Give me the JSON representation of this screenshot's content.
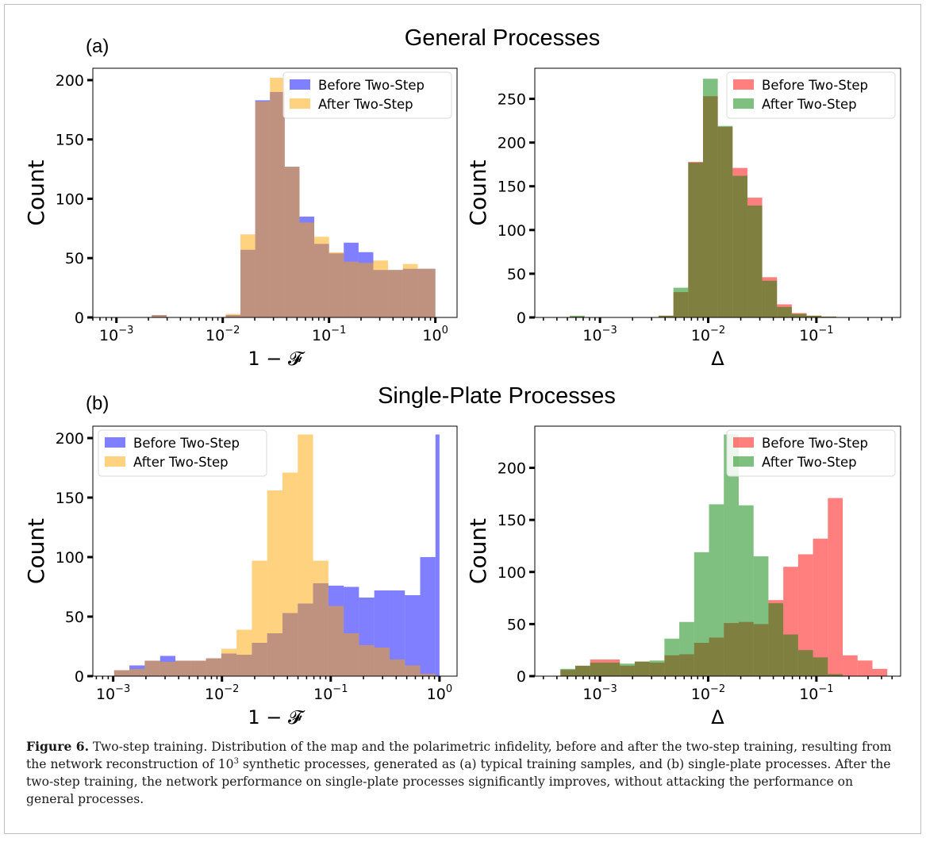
{
  "row_titles": [
    {
      "panel_label": "(a)",
      "title": "General Processes"
    },
    {
      "panel_label": "(b)",
      "title": "Single-Plate Processes"
    }
  ],
  "caption": {
    "label": "Figure 6.",
    "text_1": " Two-step training. Distribution of the map and the polarimetric infidelity, before and after the two-step training, resulting from the network reconstruction of 10",
    "sup": "3",
    "text_2": " synthetic processes, generated as (a) typical training samples, and (b) single-plate processes. After the two-step training, the network performance on single-plate processes significantly improves, without attacking the performance on general processes."
  },
  "colors": {
    "blue": "#0000ff",
    "orange": "#ffa500",
    "red": "#ff0000",
    "green": "#008000",
    "alpha": 0.5
  },
  "chart_data": [
    {
      "type": "bar",
      "xscale": "log",
      "xlabel": "1 − 𝓕",
      "ylabel": "Count",
      "xlim": [
        0.0006,
        1.6
      ],
      "ylim": [
        0,
        210
      ],
      "xticks": [
        [
          "10",
          "-3"
        ],
        [
          "10",
          "-2"
        ],
        [
          "10",
          "-1"
        ],
        [
          "10",
          "0"
        ]
      ],
      "yticks": [
        0,
        50,
        100,
        150,
        200
      ],
      "legend_position": "top-right",
      "bin_edges": [
        0.00215,
        0.00297,
        0.00408,
        0.00562,
        0.00774,
        0.01067,
        0.01468,
        0.02021,
        0.02782,
        0.03831,
        0.05274,
        0.07261,
        0.09998,
        0.13761,
        0.18951,
        0.26098,
        0.35937,
        0.49484,
        0.68144,
        0.93841,
        1.0
      ],
      "series": [
        {
          "name": "Before Two-Step",
          "color": "blue",
          "values": [
            2,
            0,
            0,
            0,
            0,
            2,
            57,
            183,
            190,
            127,
            85,
            62,
            54,
            63,
            55,
            40,
            40,
            41,
            41,
            41
          ]
        },
        {
          "name": "After Two-Step",
          "color": "orange",
          "values": [
            2,
            0,
            0,
            0,
            0,
            3,
            70,
            182,
            202,
            127,
            80,
            68,
            55,
            47,
            46,
            48,
            40,
            45,
            41,
            41
          ]
        }
      ]
    },
    {
      "type": "bar",
      "xscale": "log",
      "xlabel": "Δ",
      "ylabel": "Count",
      "xlim": [
        0.00025,
        0.6
      ],
      "ylim": [
        0,
        285
      ],
      "xticks": [
        [
          "10",
          "-3"
        ],
        [
          "10",
          "-2"
        ],
        [
          "10",
          "-1"
        ]
      ],
      "yticks": [
        0,
        50,
        100,
        150,
        200,
        250
      ],
      "legend_position": "top-right",
      "bin_edges": [
        0.000526,
        0.000721,
        0.000988,
        0.001354,
        0.001855,
        0.002541,
        0.003482,
        0.004771,
        0.006536,
        0.008956,
        0.012272,
        0.016817,
        0.023044,
        0.031575,
        0.043264,
        0.059283,
        0.081231,
        0.111307,
        0.152519,
        0.208983
      ],
      "series": [
        {
          "name": "Before Two-Step",
          "color": "red",
          "values": [
            1,
            0,
            0,
            0,
            0,
            0,
            2,
            29,
            178,
            253,
            218,
            171,
            137,
            46,
            15,
            5,
            2,
            1,
            0
          ]
        },
        {
          "name": "After Two-Step",
          "color": "green",
          "values": [
            2,
            0,
            0,
            0,
            0,
            0,
            2,
            34,
            177,
            273,
            219,
            162,
            128,
            42,
            12,
            4,
            2,
            1,
            0
          ]
        }
      ]
    },
    {
      "type": "bar",
      "xscale": "log",
      "xlabel": "1 − 𝓕",
      "ylabel": "Count",
      "xlim": [
        0.00065,
        1.45
      ],
      "ylim": [
        0,
        210
      ],
      "xticks": [
        [
          "10",
          "-3"
        ],
        [
          "10",
          "-2"
        ],
        [
          "10",
          "-1"
        ],
        [
          "10",
          "0"
        ]
      ],
      "yticks": [
        0,
        50,
        100,
        150,
        200
      ],
      "legend_position": "top-left",
      "bin_edges": [
        0.00102,
        0.00141,
        0.00195,
        0.0027,
        0.00373,
        0.00516,
        0.00713,
        0.00986,
        0.01363,
        0.01884,
        0.02604,
        0.036,
        0.04977,
        0.0688,
        0.09512,
        0.13149,
        0.18178,
        0.25131,
        0.34743,
        0.48031,
        0.66402,
        0.91799,
        1.0
      ],
      "series": [
        {
          "name": "Before Two-Step",
          "color": "blue",
          "values": [
            5,
            9,
            13,
            17,
            13,
            13,
            15,
            19,
            18,
            28,
            36,
            53,
            61,
            78,
            76,
            75,
            66,
            72,
            72,
            68,
            100,
            203
          ]
        },
        {
          "name": "After Two-Step",
          "color": "orange",
          "values": [
            5,
            6,
            13,
            12,
            13,
            13,
            15,
            23,
            39,
            97,
            156,
            171,
            203,
            97,
            59,
            36,
            26,
            24,
            14,
            9,
            2,
            0
          ]
        }
      ]
    },
    {
      "type": "bar",
      "xscale": "log",
      "xlabel": "Δ",
      "ylabel": "Count",
      "xlim": [
        0.00025,
        0.6
      ],
      "ylim": [
        0,
        240
      ],
      "xticks": [
        [
          "10",
          "-3"
        ],
        [
          "10",
          "-2"
        ],
        [
          "10",
          "-1"
        ]
      ],
      "yticks": [
        0,
        50,
        100,
        150,
        200
      ],
      "legend_position": "top-right",
      "bin_edges": [
        0.000431,
        0.000591,
        0.000811,
        0.001113,
        0.001527,
        0.002095,
        0.002874,
        0.003942,
        0.005408,
        0.007418,
        0.010176,
        0.01396,
        0.01915,
        0.02627,
        0.036037,
        0.049436,
        0.067817,
        0.093032,
        0.127622,
        0.175074,
        0.240166,
        0.32946,
        0.451958
      ],
      "series": [
        {
          "name": "Before Two-Step",
          "color": "red",
          "values": [
            6,
            10,
            16,
            16,
            10,
            14,
            13,
            20,
            21,
            32,
            37,
            51,
            52,
            50,
            73,
            105,
            117,
            132,
            171,
            20,
            15,
            7
          ]
        },
        {
          "name": "After Two-Step",
          "color": "green",
          "values": [
            7,
            10,
            13,
            13,
            12,
            14,
            15,
            36,
            52,
            119,
            165,
            232,
            164,
            115,
            70,
            40,
            25,
            18,
            2,
            0,
            0,
            0
          ]
        }
      ]
    }
  ]
}
